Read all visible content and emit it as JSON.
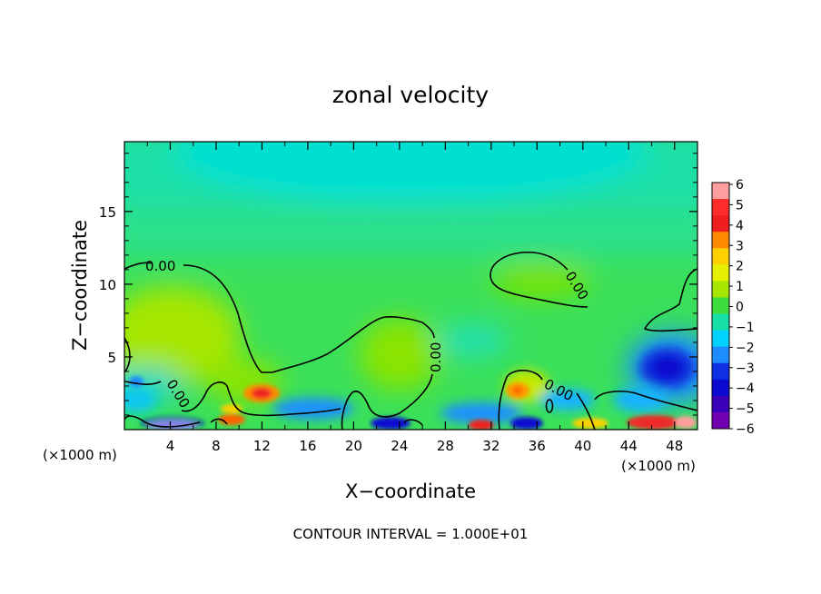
{
  "chart_data": {
    "type": "heatmap",
    "title": "zonal velocity",
    "xlabel": "X−coordinate",
    "ylabel": "Z−coordinate",
    "x_unit": "(×1000 m)",
    "y_unit": "(×1000 m)",
    "xlim": [
      0,
      50
    ],
    "ylim": [
      0,
      19.8
    ],
    "x_ticks": [
      "4",
      "8",
      "12",
      "16",
      "20",
      "24",
      "28",
      "32",
      "36",
      "40",
      "44",
      "48"
    ],
    "y_ticks": [
      "5",
      "10",
      "15"
    ],
    "colorbar": {
      "labels": [
        "6",
        "5",
        "4",
        "3",
        "2",
        "1",
        "0",
        "−1",
        "−2",
        "−3",
        "−4",
        "−5",
        "−6"
      ],
      "colors": [
        "#ff9e9e",
        "#ff2c2c",
        "#ee1e1e",
        "#ff8a00",
        "#ffd000",
        "#e4f000",
        "#a6e600",
        "#3cdd3c",
        "#16e0a6",
        "#00d2ff",
        "#1c8cff",
        "#1030e6",
        "#0a0ad0",
        "#3a00b8",
        "#7000b0"
      ]
    },
    "contour_labels": [
      "0.00",
      "0.00",
      "0.00",
      "0.00",
      "0.00"
    ],
    "footnote": "CONTOUR INTERVAL = 1.000E+01"
  }
}
